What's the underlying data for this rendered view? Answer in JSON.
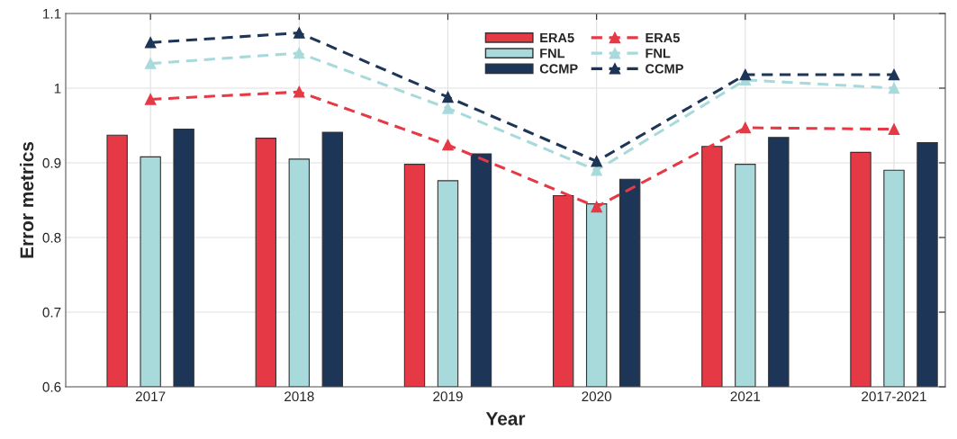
{
  "chart_data": {
    "type": "bar",
    "xlabel": "Year",
    "ylabel": "Error metrics",
    "categories": [
      "2017",
      "2018",
      "2019",
      "2020",
      "2021",
      "2017-2021"
    ],
    "series": [
      {
        "name": "ERA5",
        "color": "#e63946",
        "values": [
          0.937,
          0.933,
          0.898,
          0.856,
          0.922,
          0.914
        ]
      },
      {
        "name": "FNL",
        "color": "#a8dadc",
        "values": [
          0.908,
          0.905,
          0.876,
          0.845,
          0.898,
          0.89
        ]
      },
      {
        "name": "CCMP",
        "color": "#1d3557",
        "values": [
          0.945,
          0.941,
          0.912,
          0.878,
          0.934,
          0.927
        ]
      },
      {
        "name": "ERA5",
        "type": "line",
        "color": "#e63946",
        "marker": "triangle",
        "line_style": "dashed",
        "values": [
          0.985,
          0.995,
          0.924,
          0.841,
          0.947,
          0.945
        ]
      },
      {
        "name": "FNL",
        "type": "line",
        "color": "#a8dadc",
        "marker": "triangle",
        "line_style": "dashed",
        "values": [
          1.033,
          1.047,
          0.973,
          0.89,
          1.011,
          1.0
        ]
      },
      {
        "name": "CCMP",
        "type": "line",
        "color": "#1d3557",
        "marker": "triangle",
        "line_style": "dashed",
        "values": [
          1.061,
          1.074,
          0.988,
          0.902,
          1.018,
          1.018
        ]
      }
    ],
    "ylim": [
      0.6,
      1.1
    ],
    "yticks": [
      0.6,
      0.7,
      0.8,
      0.9,
      1,
      1.1
    ],
    "grid": true,
    "legend": "top"
  }
}
